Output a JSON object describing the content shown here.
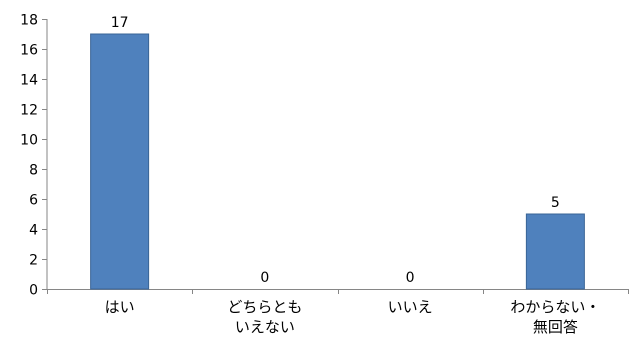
{
  "chart_data": {
    "type": "bar",
    "categories": [
      [
        "はい"
      ],
      [
        "どちらとも",
        "いえない"
      ],
      [
        "いいえ"
      ],
      [
        "わからない・",
        "無回答"
      ]
    ],
    "values": [
      17,
      0,
      0,
      5
    ],
    "data_labels": [
      "17",
      "0",
      "0",
      "5"
    ],
    "ylim": [
      0,
      18
    ],
    "yticks": [
      0,
      2,
      4,
      6,
      8,
      10,
      12,
      14,
      16,
      18
    ],
    "title": "",
    "xlabel": "",
    "ylabel": "",
    "grid": false,
    "legend": "none",
    "bar_color": "#4F81BD",
    "bar_edge_color": "#3A6496",
    "axis_color": "#868686"
  }
}
